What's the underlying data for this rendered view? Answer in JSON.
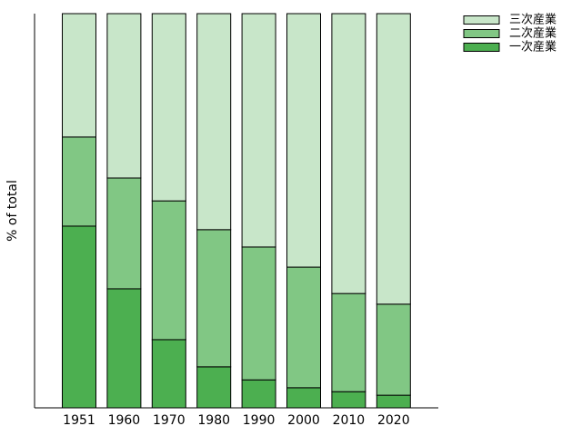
{
  "chart_data": {
    "type": "stacked-bar",
    "y_label": "% of total",
    "categories": [
      "1951",
      "1960",
      "1970",
      "1980",
      "1990",
      "2000",
      "2010",
      "2020"
    ],
    "series": [
      {
        "name": "一次産業",
        "color": "#4caf50",
        "values": [
          46.1,
          30.2,
          17.3,
          10.4,
          7.1,
          5.1,
          4.1,
          3.2
        ]
      },
      {
        "name": "二次産業",
        "color": "#81c784",
        "values": [
          22.6,
          28.1,
          35.2,
          34.8,
          33.7,
          30.6,
          24.9,
          23.1
        ]
      },
      {
        "name": "三次産業",
        "color": "#c8e6c9",
        "values": [
          31.3,
          41.7,
          47.5,
          54.8,
          59.2,
          64.3,
          71.0,
          73.7
        ]
      }
    ],
    "ylim": [
      0,
      100
    ],
    "legend": "upper-right-outside"
  }
}
